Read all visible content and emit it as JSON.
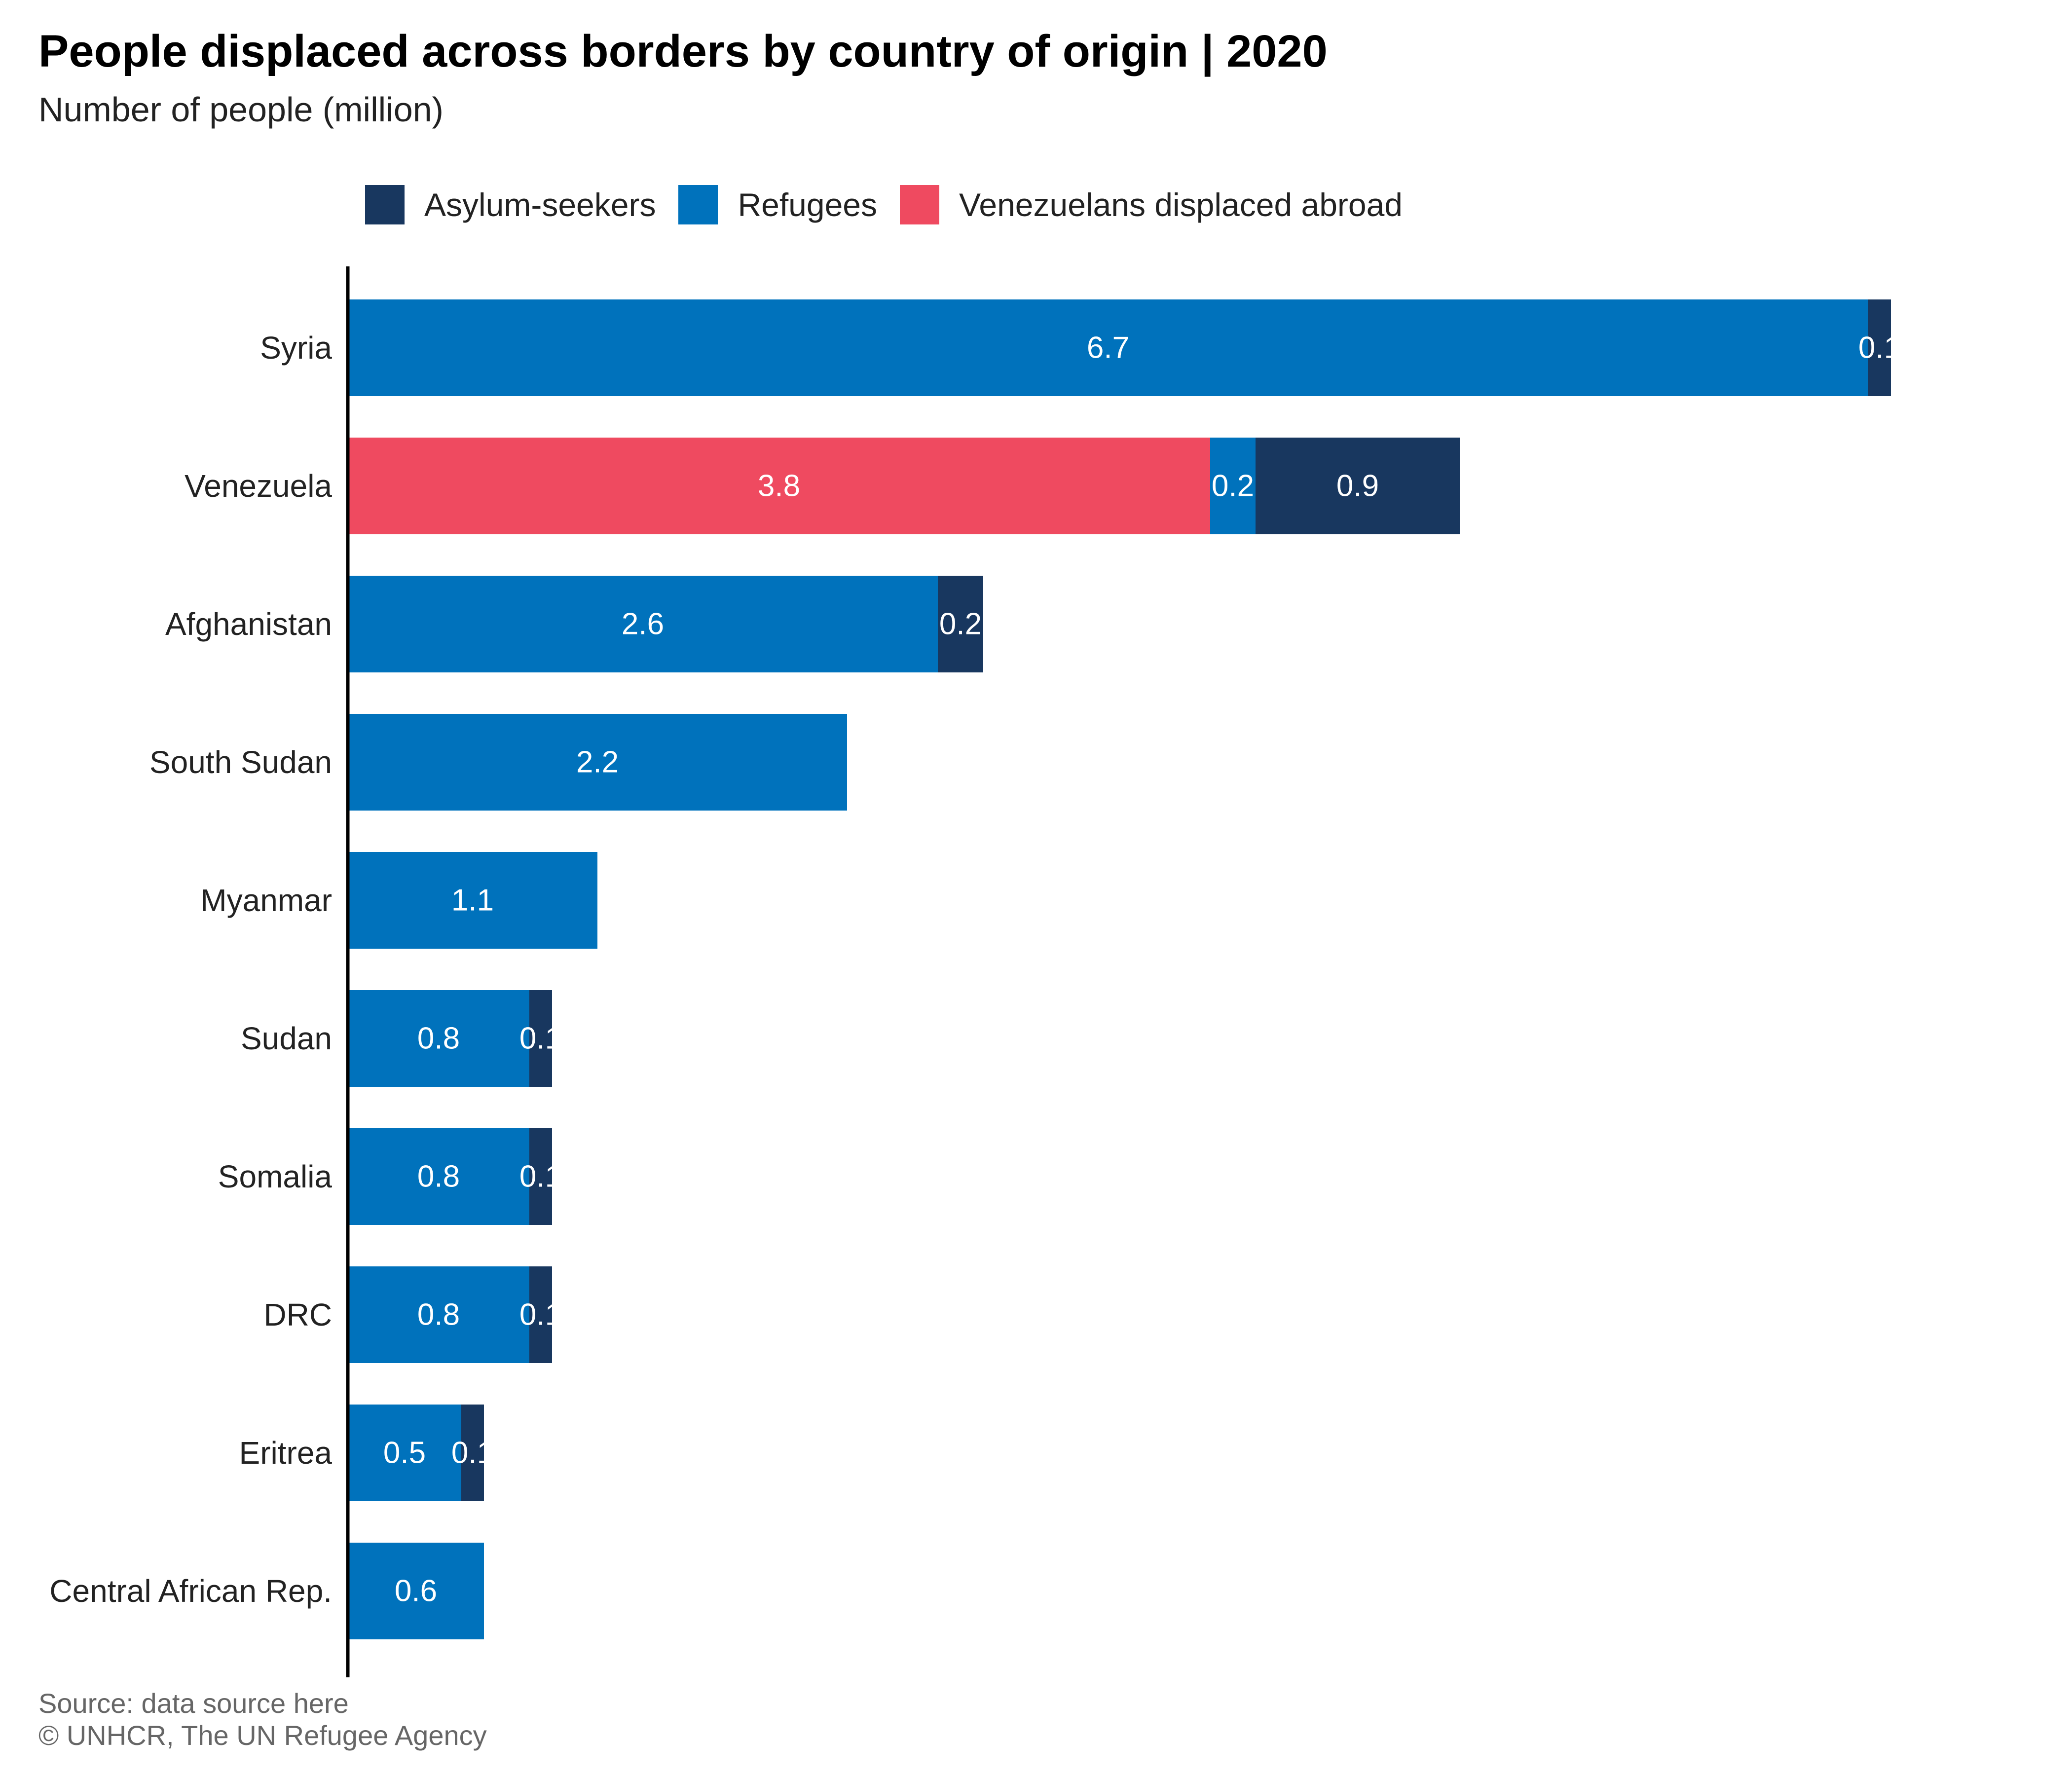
{
  "title": "People displaced across borders by country of origin | 2020",
  "subtitle": "Number of people (million)",
  "legend": [
    {
      "label": "Asylum-seekers",
      "color": "#18375f"
    },
    {
      "label": "Refugees",
      "color": "#0072bc"
    },
    {
      "label": "Venezuelans displaced abroad",
      "color": "#ef4a60"
    }
  ],
  "chart_data": {
    "type": "bar",
    "orientation": "horizontal",
    "stacked": true,
    "categories": [
      "Syria",
      "Venezuela",
      "Afghanistan",
      "South Sudan",
      "Myanmar",
      "Sudan",
      "Somalia",
      "DRC",
      "Eritrea",
      "Central African Rep."
    ],
    "series": [
      {
        "name": "Venezuelans displaced abroad",
        "color": "#ef4a60",
        "values": [
          0,
          3.8,
          0,
          0,
          0,
          0,
          0,
          0,
          0,
          0
        ]
      },
      {
        "name": "Refugees",
        "color": "#0072bc",
        "values": [
          6.7,
          0.2,
          2.6,
          2.2,
          1.1,
          0.8,
          0.8,
          0.8,
          0.5,
          0.6
        ]
      },
      {
        "name": "Asylum-seekers",
        "color": "#18375f",
        "values": [
          0.1,
          0.9,
          0.2,
          0,
          0,
          0.1,
          0.1,
          0.1,
          0.1,
          0
        ]
      }
    ],
    "data_labels": true,
    "legend_position": "top",
    "grid": false
  },
  "footer": {
    "source": "Source: data source here",
    "copyright": "© UNHCR, The UN Refugee Agency"
  }
}
